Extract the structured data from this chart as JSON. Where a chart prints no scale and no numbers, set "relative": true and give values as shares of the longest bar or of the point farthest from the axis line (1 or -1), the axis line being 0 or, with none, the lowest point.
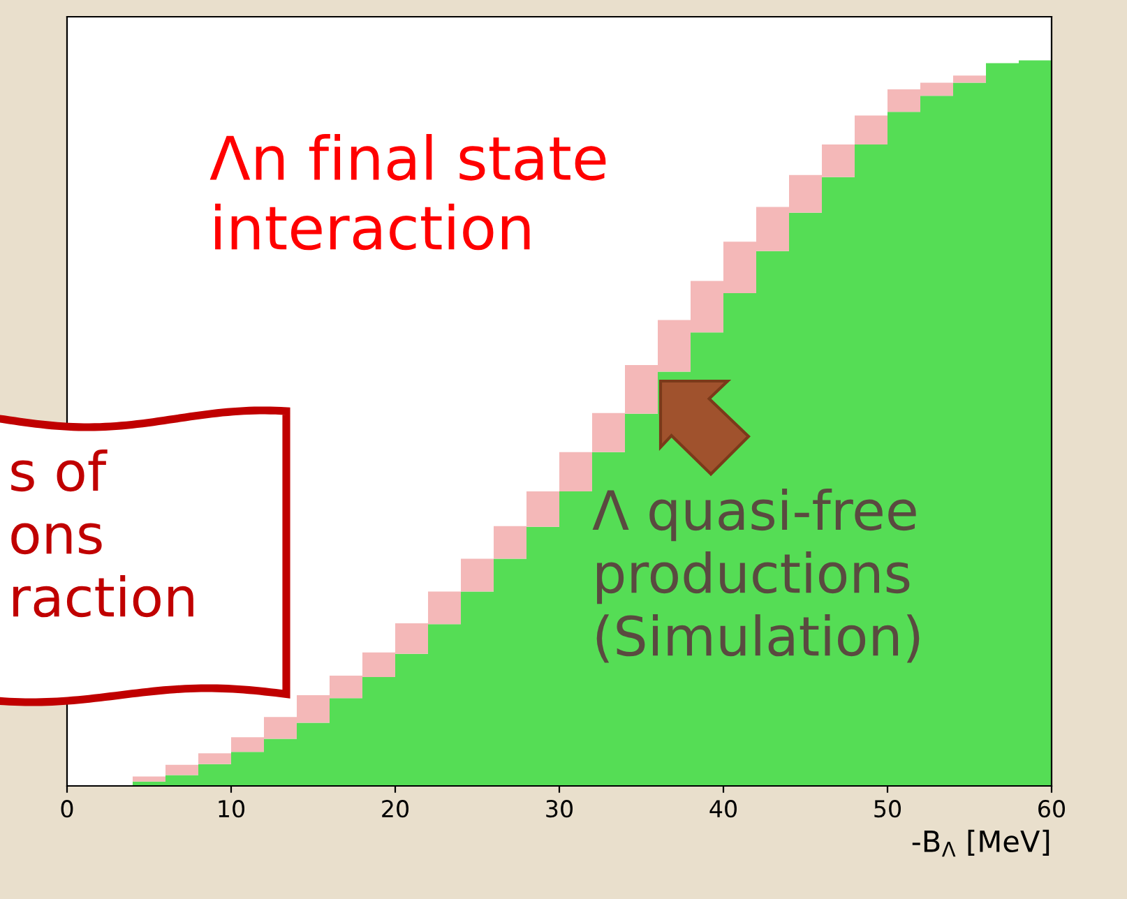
{
  "chart_data": {
    "type": "bar",
    "relative": true,
    "stacked": true,
    "xlabel": "-B$_{Λ}$ [MeV]",
    "xlim": [
      0,
      60
    ],
    "xticks": [
      0,
      10,
      20,
      30,
      40,
      50,
      60
    ],
    "grid": false,
    "legend": false,
    "x": [
      1,
      3,
      5,
      7,
      9,
      11,
      13,
      15,
      17,
      19,
      21,
      23,
      25,
      27,
      29,
      31,
      33,
      35,
      37,
      39,
      41,
      43,
      45,
      47,
      49,
      51,
      53,
      55,
      57,
      59
    ],
    "series": [
      {
        "color": "#55dd55",
        "values": [
          0,
          0,
          0.006,
          0.015,
          0.03,
          0.047,
          0.065,
          0.087,
          0.121,
          0.15,
          0.182,
          0.223,
          0.268,
          0.313,
          0.357,
          0.406,
          0.46,
          0.513,
          0.571,
          0.625,
          0.679,
          0.737,
          0.79,
          0.839,
          0.884,
          0.929,
          0.951,
          0.969,
          0.996,
          1
        ]
      },
      {
        "color": "#f4b8b8",
        "values": [
          0,
          0,
          0.007,
          0.014,
          0.015,
          0.02,
          0.03,
          0.038,
          0.031,
          0.034,
          0.042,
          0.045,
          0.045,
          0.045,
          0.049,
          0.054,
          0.054,
          0.067,
          0.071,
          0.071,
          0.071,
          0.061,
          0.052,
          0.045,
          0.04,
          0.031,
          0.018,
          0.01,
          0,
          0
        ]
      }
    ],
    "annotations": [
      "Λn final state\ninteraction",
      "Λ quasi-free\nproductions\n(Simulation)",
      "s of\nons\nraction"
    ]
  }
}
